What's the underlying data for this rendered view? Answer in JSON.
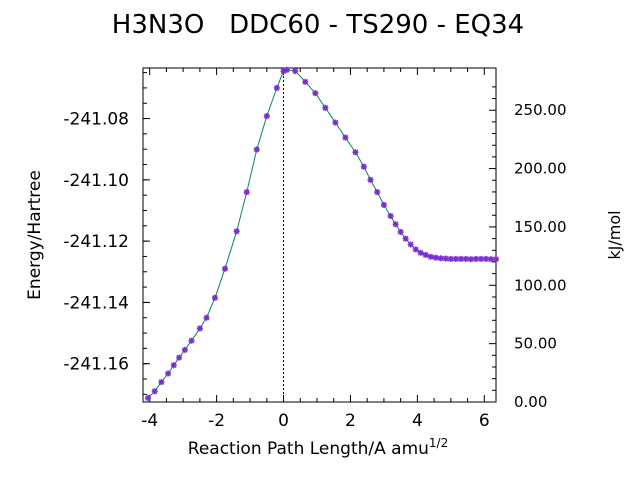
{
  "chart_data": {
    "type": "line",
    "title": "H3N3O   DDC60 - TS290 - EQ34",
    "xlabel": "Reaction Path Length/A amu",
    "xlabel_superscript": "1/2",
    "ylabel": "Energy/Hartree",
    "ylabel_right": "kJ/mol",
    "xlim": [
      -4.2,
      6.35
    ],
    "ylim": [
      -241.1725,
      -241.0635
    ],
    "x_ticks": [
      "-4",
      "-2",
      "0",
      "2",
      "4",
      "6"
    ],
    "x_tick_values": [
      -4,
      -2,
      0,
      2,
      4,
      6
    ],
    "y_ticks": [
      "-241.08",
      "-241.10",
      "-241.12",
      "-241.14",
      "-241.16"
    ],
    "y_tick_values": [
      -241.08,
      -241.1,
      -241.12,
      -241.14,
      -241.16
    ],
    "y_right_ticks": [
      "250.00",
      "200.00",
      "150.00",
      "100.00",
      "50.00",
      "0.00"
    ],
    "y_right_tick_values": [
      250,
      200,
      150,
      100,
      50,
      0
    ],
    "y_right_zero_hartree": -241.1725,
    "hartree_to_kjmol": 2625.5,
    "vertical_marker_x": 0,
    "grid": false,
    "colors": {
      "line": "#00896b",
      "points": "#7a2fd0",
      "marker": "#000000"
    },
    "series": [
      {
        "x": [
          -4.05,
          -3.85,
          -3.65,
          -3.45,
          -3.28,
          -3.12,
          -2.95,
          -2.75,
          -2.5,
          -2.3,
          -2.05,
          -1.75,
          -1.4,
          -1.1,
          -0.8,
          -0.5,
          -0.2,
          0.0,
          0.1,
          0.35,
          0.65,
          0.95,
          1.25,
          1.55,
          1.85,
          2.15,
          2.4,
          2.6,
          2.8,
          3.0,
          3.2,
          3.35,
          3.5,
          3.65,
          3.8,
          3.95,
          4.1,
          4.25,
          4.4,
          4.55,
          4.7,
          4.85,
          5.0,
          5.15,
          5.3,
          5.45,
          5.6,
          5.75,
          5.9,
          6.05,
          6.2,
          6.35
        ],
        "y": [
          -241.1712,
          -241.169,
          -241.166,
          -241.1632,
          -241.1605,
          -241.158,
          -241.1555,
          -241.1525,
          -241.1485,
          -241.145,
          -241.1385,
          -241.129,
          -241.1168,
          -241.104,
          -241.0901,
          -241.0792,
          -241.07,
          -241.0645,
          -241.0641,
          -241.0645,
          -241.068,
          -241.0717,
          -241.0765,
          -241.0813,
          -241.0862,
          -241.091,
          -241.0957,
          -241.1,
          -241.104,
          -241.1082,
          -241.1118,
          -241.1145,
          -241.117,
          -241.1192,
          -241.1211,
          -241.1227,
          -241.1238,
          -241.1245,
          -241.1251,
          -241.1254,
          -241.1256,
          -241.1257,
          -241.1258,
          -241.1258,
          -241.1258,
          -241.1258,
          -241.1259,
          -241.1258,
          -241.1258,
          -241.1258,
          -241.1259,
          -241.1259
        ]
      }
    ]
  }
}
